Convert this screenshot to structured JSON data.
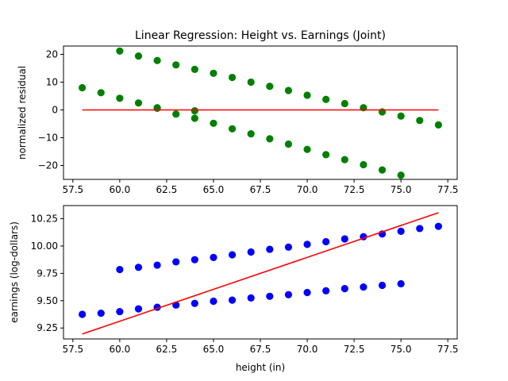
{
  "colors": {
    "residual_points": "#008000",
    "earnings_points": "#0000ff",
    "fit_line": "#ff0000",
    "axes": "#000000",
    "background": "#ffffff"
  },
  "chart_data": [
    {
      "type": "scatter",
      "title": "Linear Regression: Height vs. Earnings (Joint)",
      "xlabel": "",
      "ylabel": "normalized residual",
      "xlim": [
        57,
        78
      ],
      "ylim": [
        -25,
        23
      ],
      "xticks": [
        57.5,
        60.0,
        62.5,
        65.0,
        67.5,
        70.0,
        72.5,
        75.0,
        77.5
      ],
      "xtick_labels": [
        "57.5",
        "60.0",
        "62.5",
        "65.0",
        "67.5",
        "70.0",
        "72.5",
        "75.0",
        "77.5"
      ],
      "yticks": [
        -20,
        -10,
        0,
        10,
        20
      ],
      "ytick_labels": [
        "−20",
        "−10",
        "0",
        "10",
        "20"
      ],
      "grid": false,
      "series": [
        {
          "kind": "points",
          "color_key": "residual_points",
          "points": [
            [
              58,
              8.0
            ],
            [
              59,
              6.2
            ],
            [
              60,
              4.2
            ],
            [
              61,
              2.5
            ],
            [
              62,
              0.8
            ],
            [
              63,
              -1.5
            ],
            [
              64,
              -3.0
            ],
            [
              65,
              -4.8
            ],
            [
              66,
              -6.8
            ],
            [
              67,
              -8.6
            ],
            [
              68,
              -10.4
            ],
            [
              69,
              -12.3
            ],
            [
              70,
              -14.2
            ],
            [
              71,
              -16.1
            ],
            [
              72,
              -17.9
            ],
            [
              73,
              -19.7
            ],
            [
              74,
              -21.6
            ],
            [
              75,
              -23.5
            ],
            [
              60,
              21.2
            ],
            [
              61,
              19.4
            ],
            [
              62,
              17.8
            ],
            [
              63,
              16.2
            ],
            [
              64,
              14.6
            ],
            [
              65,
              13.2
            ],
            [
              66,
              11.7
            ],
            [
              67,
              10.0
            ],
            [
              68,
              8.5
            ],
            [
              69,
              7.0
            ],
            [
              70,
              5.3
            ],
            [
              71,
              3.8
            ],
            [
              72,
              2.3
            ],
            [
              73,
              0.8
            ],
            [
              74,
              -0.7
            ],
            [
              75,
              -2.2
            ],
            [
              76,
              -3.8
            ],
            [
              77,
              -5.4
            ],
            [
              62,
              0.6
            ],
            [
              64,
              -0.3
            ]
          ]
        },
        {
          "kind": "line",
          "color_key": "fit_line",
          "points": [
            [
              58,
              0
            ],
            [
              77,
              0
            ]
          ]
        }
      ]
    },
    {
      "type": "scatter",
      "title": "",
      "xlabel": "height (in)",
      "ylabel": "earnings (log-dollars)",
      "xlim": [
        57,
        78
      ],
      "ylim": [
        9.15,
        10.37
      ],
      "xticks": [
        57.5,
        60.0,
        62.5,
        65.0,
        67.5,
        70.0,
        72.5,
        75.0,
        77.5
      ],
      "xtick_labels": [
        "57.5",
        "60.0",
        "62.5",
        "65.0",
        "67.5",
        "70.0",
        "72.5",
        "75.0",
        "77.5"
      ],
      "yticks": [
        9.25,
        9.5,
        9.75,
        10.0,
        10.25
      ],
      "ytick_labels": [
        "9.25",
        "9.50",
        "9.75",
        "10.00",
        "10.25"
      ],
      "grid": false,
      "series": [
        {
          "kind": "points",
          "color_key": "earnings_points",
          "points": [
            [
              58,
              9.375
            ],
            [
              59,
              9.385
            ],
            [
              60,
              9.4
            ],
            [
              61,
              9.425
            ],
            [
              62,
              9.44
            ],
            [
              63,
              9.46
            ],
            [
              64,
              9.475
            ],
            [
              65,
              9.495
            ],
            [
              66,
              9.505
            ],
            [
              67,
              9.525
            ],
            [
              68,
              9.54
            ],
            [
              69,
              9.555
            ],
            [
              70,
              9.575
            ],
            [
              71,
              9.59
            ],
            [
              72,
              9.61
            ],
            [
              73,
              9.625
            ],
            [
              74,
              9.64
            ],
            [
              75,
              9.655
            ],
            [
              60,
              9.785
            ],
            [
              61,
              9.805
            ],
            [
              62,
              9.825
            ],
            [
              63,
              9.855
            ],
            [
              64,
              9.875
            ],
            [
              65,
              9.895
            ],
            [
              66,
              9.92
            ],
            [
              67,
              9.945
            ],
            [
              68,
              9.97
            ],
            [
              69,
              9.99
            ],
            [
              70,
              10.015
            ],
            [
              71,
              10.04
            ],
            [
              72,
              10.065
            ],
            [
              73,
              10.085
            ],
            [
              74,
              10.11
            ],
            [
              75,
              10.135
            ],
            [
              76,
              10.16
            ],
            [
              77,
              10.18
            ]
          ]
        },
        {
          "kind": "line",
          "color_key": "fit_line",
          "points": [
            [
              58,
              9.195
            ],
            [
              77,
              10.305
            ]
          ]
        }
      ]
    }
  ]
}
